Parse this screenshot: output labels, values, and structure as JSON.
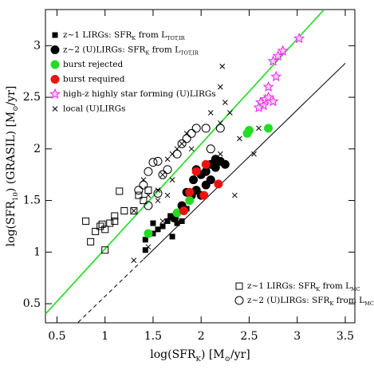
{
  "chart_data": {
    "type": "scatter",
    "xlabel": [
      {
        "t": "log(SFR"
      },
      {
        "sub": "K"
      },
      {
        "t": ") [M"
      },
      {
        "sub": "⊙"
      },
      {
        "t": "/yr]"
      }
    ],
    "ylabel": [
      {
        "t": "log(SFR"
      },
      {
        "sub": "10"
      },
      {
        "t": ") (GRASIL) [M"
      },
      {
        "sub": "⊙"
      },
      {
        "t": "/yr]"
      }
    ],
    "xlim": [
      0.38,
      3.6
    ],
    "ylim": [
      0.315,
      3.35
    ],
    "xticks": [
      0.5,
      1,
      1.5,
      2,
      2.5,
      3,
      3.5
    ],
    "yticks": [
      0.5,
      1,
      1.5,
      2,
      2.5,
      3
    ],
    "lines": [
      {
        "x": [
          0.38,
          3.28
        ],
        "values": [
          0.4,
          3.35
        ],
        "color": "#33dd33",
        "dash": false
      },
      {
        "x": [
          0.72,
          1.4
        ],
        "values": [
          0.32,
          0.93
        ],
        "color": "#000000",
        "dash": true
      },
      {
        "x": [
          1.4,
          3.5
        ],
        "values": [
          0.93,
          2.83
        ],
        "color": "#000000",
        "dash": false
      }
    ],
    "series": [
      {
        "name": [
          {
            "t": "z~1 LIRGs: SFR"
          },
          {
            "sub": "K"
          },
          {
            "t": " from L"
          },
          {
            "sub": "TOT,IR"
          }
        ],
        "marker": "square",
        "filled": true,
        "color": "#000000",
        "size": 3,
        "legend": "upper left",
        "x": [
          1.42,
          1.42,
          1.5,
          1.55,
          1.6,
          1.65,
          1.68,
          1.7,
          1.75,
          1.8,
          1.85,
          1.5
        ],
        "values": [
          1.02,
          1.12,
          1.28,
          1.22,
          1.25,
          1.3,
          1.35,
          1.15,
          1.28,
          1.3,
          1.42,
          1.18
        ]
      },
      {
        "name": [
          {
            "t": "z~2 (U)LIRGs: SFR"
          },
          {
            "sub": "K"
          },
          {
            "t": " from L"
          },
          {
            "sub": "TOT,IR"
          }
        ],
        "marker": "circle",
        "filled": true,
        "color": "#000000",
        "size": 5,
        "legend": "upper left",
        "x": [
          1.72,
          1.8,
          1.85,
          1.92,
          1.95,
          2.0,
          2.05,
          2.1,
          2.15,
          2.2,
          2.25,
          2.05,
          2.1,
          2.0,
          1.9,
          2.15,
          1.95
        ],
        "values": [
          1.33,
          1.45,
          1.58,
          1.7,
          1.8,
          1.75,
          1.78,
          1.85,
          1.9,
          1.88,
          1.85,
          1.65,
          1.7,
          1.55,
          1.55,
          1.82,
          1.6
        ]
      },
      {
        "name": [
          {
            "t": "burst rejected"
          }
        ],
        "marker": "circle",
        "filled": true,
        "color": "#22dd22",
        "size": 5,
        "legend": "upper left",
        "x": [
          1.45,
          1.75,
          1.88,
          2.48,
          2.5,
          2.7
        ],
        "values": [
          1.18,
          1.38,
          1.5,
          2.15,
          2.18,
          2.2
        ]
      },
      {
        "name": [
          {
            "t": "burst required"
          }
        ],
        "marker": "circle",
        "filled": true,
        "color": "#ee1111",
        "size": 5,
        "legend": "upper left",
        "x": [
          1.82,
          1.88,
          1.95,
          2.05,
          2.18,
          2.03
        ],
        "values": [
          1.4,
          1.58,
          1.78,
          1.85,
          1.66,
          1.55
        ]
      },
      {
        "name": [
          {
            "t": "high-z highly star forming (U)LIRGs"
          }
        ],
        "marker": "star",
        "filled": false,
        "color": "#ee22ee",
        "size": 6,
        "legend": "upper left",
        "x": [
          2.62,
          2.65,
          2.67,
          2.7,
          2.75,
          2.8,
          2.85,
          2.78,
          2.7,
          2.6,
          2.75,
          3.02
        ],
        "values": [
          2.45,
          2.42,
          2.48,
          2.5,
          2.85,
          2.9,
          2.95,
          2.7,
          2.6,
          2.4,
          2.46,
          3.07
        ]
      },
      {
        "name": [
          {
            "t": "local (U)LIRGs"
          }
        ],
        "marker": "cross",
        "filled": false,
        "color": "#000000",
        "size": 3,
        "legend": "upper left",
        "x": [
          1.3,
          1.45,
          1.6,
          1.55,
          1.6,
          1.65,
          1.7,
          1.75,
          1.8,
          1.9,
          1.55,
          1.65,
          1.7,
          1.4,
          1.45,
          1.3,
          2.2,
          2.25,
          2.2,
          2.3,
          2.2,
          2.35,
          2.55,
          2.4,
          2.6,
          2.1,
          2.22,
          1.85
        ],
        "values": [
          0.92,
          1.05,
          1.3,
          1.6,
          1.75,
          1.9,
          1.95,
          2.0,
          2.05,
          2.0,
          1.5,
          1.55,
          1.7,
          1.7,
          1.55,
          1.4,
          2.25,
          2.45,
          2.6,
          2.35,
          1.95,
          1.55,
          1.95,
          2.1,
          2.2,
          2.35,
          2.8,
          2.15
        ]
      },
      {
        "name": [
          {
            "t": "z~1 LIRGs: SFR"
          },
          {
            "sub": "K"
          },
          {
            "t": " from L"
          },
          {
            "sub": "MC"
          }
        ],
        "marker": "square",
        "filled": false,
        "color": "#000000",
        "size": 4,
        "legend": "lower right",
        "x": [
          0.8,
          0.85,
          0.9,
          0.95,
          1.0,
          1.05,
          1.1,
          0.97,
          1.0,
          1.15,
          1.2,
          1.3,
          1.4,
          1.35,
          1.45,
          1.1
        ],
        "values": [
          1.3,
          1.1,
          1.2,
          1.25,
          1.02,
          1.28,
          1.35,
          1.27,
          1.22,
          1.59,
          1.4,
          1.4,
          1.5,
          1.55,
          1.6,
          1.3
        ]
      },
      {
        "name": [
          {
            "t": "z~2 (U)LIRGs: SFR"
          },
          {
            "sub": "K"
          },
          {
            "t": " from L"
          },
          {
            "sub": "MC"
          }
        ],
        "marker": "circle",
        "filled": false,
        "color": "#000000",
        "size": 5,
        "legend": "lower right",
        "x": [
          1.35,
          1.4,
          1.45,
          1.5,
          1.55,
          1.6,
          1.65,
          1.75,
          1.8,
          1.85,
          1.9,
          1.95,
          2.05,
          2.1,
          2.2,
          1.55,
          1.45
        ],
        "values": [
          1.6,
          1.65,
          1.78,
          1.87,
          1.88,
          1.75,
          1.8,
          1.95,
          2.05,
          2.1,
          2.15,
          2.2,
          2.2,
          2.0,
          2.2,
          1.57,
          1.45
        ]
      }
    ]
  }
}
